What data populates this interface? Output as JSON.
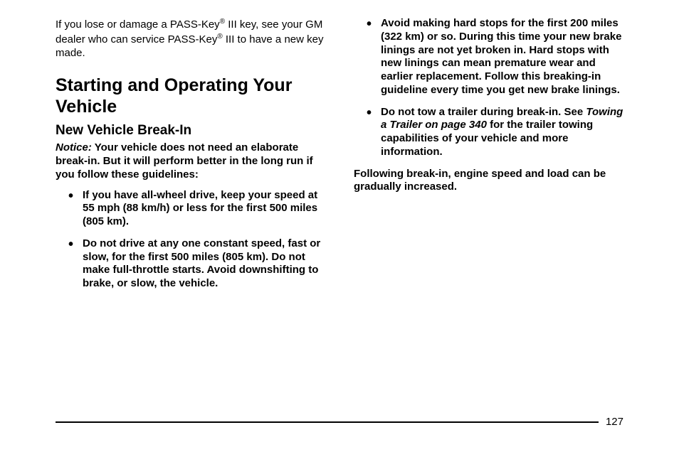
{
  "leftColumn": {
    "introPara": {
      "part1": "If you lose or damage a PASS-Key",
      "sup1": "®",
      "part2": " III key, see your GM dealer who can service PASS-Key",
      "sup2": "®",
      "part3": " III to have a new key made."
    },
    "heading1": "Starting and Operating Your Vehicle",
    "heading2": "New Vehicle Break-In",
    "noticeLabel": "Notice:",
    "noticeText": "   Your vehicle does not need an elaborate break-in. But it will perform better in the long run if you follow these guidelines:",
    "bullets": [
      "If you have all-wheel drive, keep your speed at 55 mph (88 km/h) or less for the first 500 miles (805 km).",
      "Do not drive at any one constant speed, fast or slow, for the first 500 miles (805 km). Do not make full-throttle starts. Avoid downshifting to brake, or slow, the vehicle."
    ]
  },
  "rightColumn": {
    "bullets": [
      {
        "text": "Avoid making hard stops for the first 200 miles (322 km) or so. During this time your new brake linings are not yet broken in. Hard stops with new linings can mean premature wear and earlier replacement. Follow this breaking-in guideline every time you get new brake linings."
      },
      {
        "pre": "Do not tow a trailer during break-in. See ",
        "italic": "Towing a Trailer on page 340",
        "post": " for the trailer towing capabilities of your vehicle and more information."
      }
    ],
    "closing": "Following break-in, engine speed and load can be gradually increased."
  },
  "pageNumber": "127"
}
